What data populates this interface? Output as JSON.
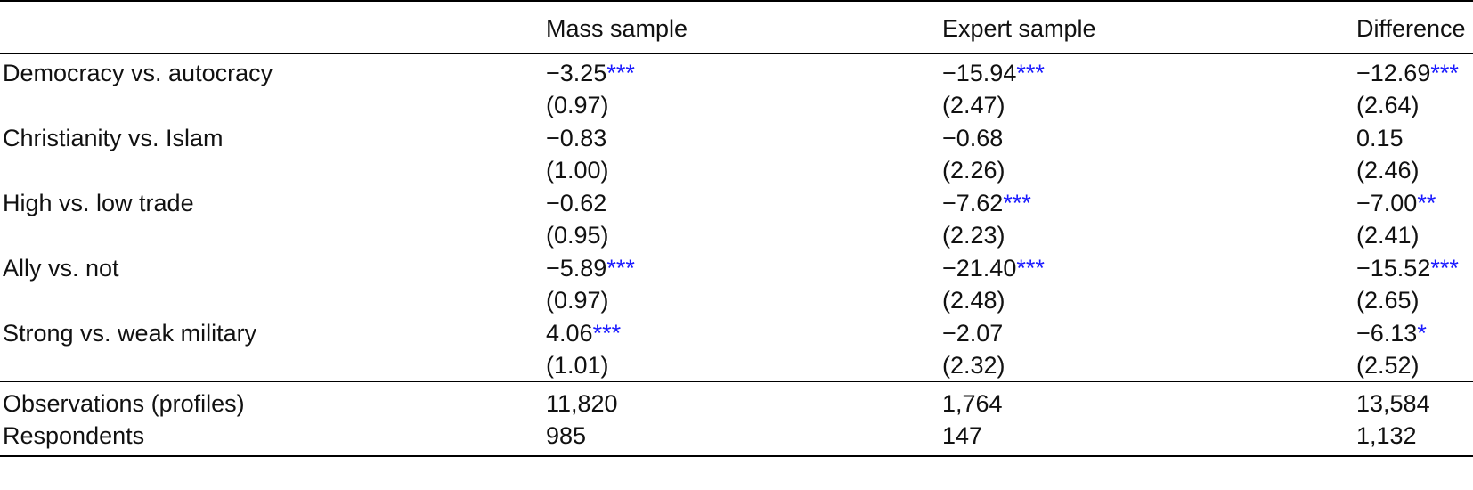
{
  "table": {
    "columns": [
      "",
      "Mass sample",
      "Expert sample",
      "Difference"
    ],
    "rows": [
      {
        "label": "Democracy vs. autocracy",
        "cells": [
          {
            "est": "−3.25",
            "stars": "***",
            "se": "(0.97)"
          },
          {
            "est": "−15.94",
            "stars": "***",
            "se": "(2.47)"
          },
          {
            "est": "−12.69",
            "stars": "***",
            "se": "(2.64)"
          }
        ]
      },
      {
        "label": "Christianity vs. Islam",
        "cells": [
          {
            "est": "−0.83",
            "stars": "",
            "se": "(1.00)"
          },
          {
            "est": "−0.68",
            "stars": "",
            "se": "(2.26)"
          },
          {
            "est": "0.15",
            "stars": "",
            "se": "(2.46)"
          }
        ]
      },
      {
        "label": "High vs. low trade",
        "cells": [
          {
            "est": "−0.62",
            "stars": "",
            "se": "(0.95)"
          },
          {
            "est": "−7.62",
            "stars": "***",
            "se": "(2.23)"
          },
          {
            "est": "−7.00",
            "stars": "**",
            "se": "(2.41)"
          }
        ]
      },
      {
        "label": "Ally vs. not",
        "cells": [
          {
            "est": "−5.89",
            "stars": "***",
            "se": "(0.97)"
          },
          {
            "est": "−21.40",
            "stars": "***",
            "se": "(2.48)"
          },
          {
            "est": "−15.52",
            "stars": "***",
            "se": "(2.65)"
          }
        ]
      },
      {
        "label": "Strong vs. weak military",
        "cells": [
          {
            "est": "4.06",
            "stars": "***",
            "se": "(1.01)"
          },
          {
            "est": "−2.07",
            "stars": "",
            "se": "(2.32)"
          },
          {
            "est": "−6.13",
            "stars": "*",
            "se": "(2.52)"
          }
        ]
      }
    ],
    "stats": [
      {
        "label": "Observations (profiles)",
        "values": [
          "11,820",
          "1,764",
          "13,584"
        ]
      },
      {
        "label": "Respondents",
        "values": [
          "985",
          "147",
          "1,132"
        ]
      }
    ]
  },
  "colors": {
    "stars": "#1a1aff",
    "text": "#111111",
    "rules": "#000000"
  }
}
